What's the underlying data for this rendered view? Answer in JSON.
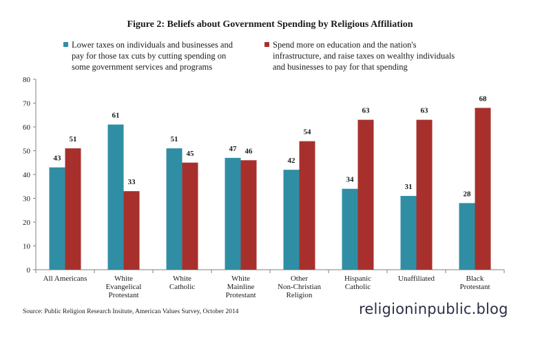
{
  "chart_data": {
    "type": "bar",
    "title": "Figure 2: Beliefs about Government Spending by Religious Affiliation",
    "categories": [
      [
        "All Americans"
      ],
      [
        "White",
        "Evangelical",
        "Protestant"
      ],
      [
        "White",
        "Catholic"
      ],
      [
        "White",
        "Mainline",
        "Protestant"
      ],
      [
        "Other",
        "Non-Christian",
        "Religion"
      ],
      [
        "Hispanic",
        "Catholic"
      ],
      [
        "Unaffiliated"
      ],
      [
        "Black",
        "Protestant"
      ]
    ],
    "series": [
      {
        "name_lines": [
          "Lower taxes on individuals and businesses and",
          "pay for those tax cuts by cutting spending on",
          "some government services and programs"
        ],
        "color": "#2f8ea4",
        "values": [
          43,
          61,
          51,
          47,
          42,
          34,
          31,
          28
        ]
      },
      {
        "name_lines": [
          "Spend more on education and the nation's",
          "infrastructure, and raise taxes on wealthy individuals",
          "and businesses to pay for that spending"
        ],
        "color": "#a8302c",
        "values": [
          51,
          33,
          45,
          46,
          54,
          63,
          63,
          68
        ]
      }
    ],
    "ylim": [
      0,
      80
    ],
    "yticks": [
      0,
      10,
      20,
      30,
      40,
      50,
      60,
      70,
      80
    ],
    "grid": false,
    "legend_position": "top"
  },
  "source": "Source: Public Religion Research Insitute, American Values Survey, October 2014",
  "watermark": "religioninpublic.blog"
}
